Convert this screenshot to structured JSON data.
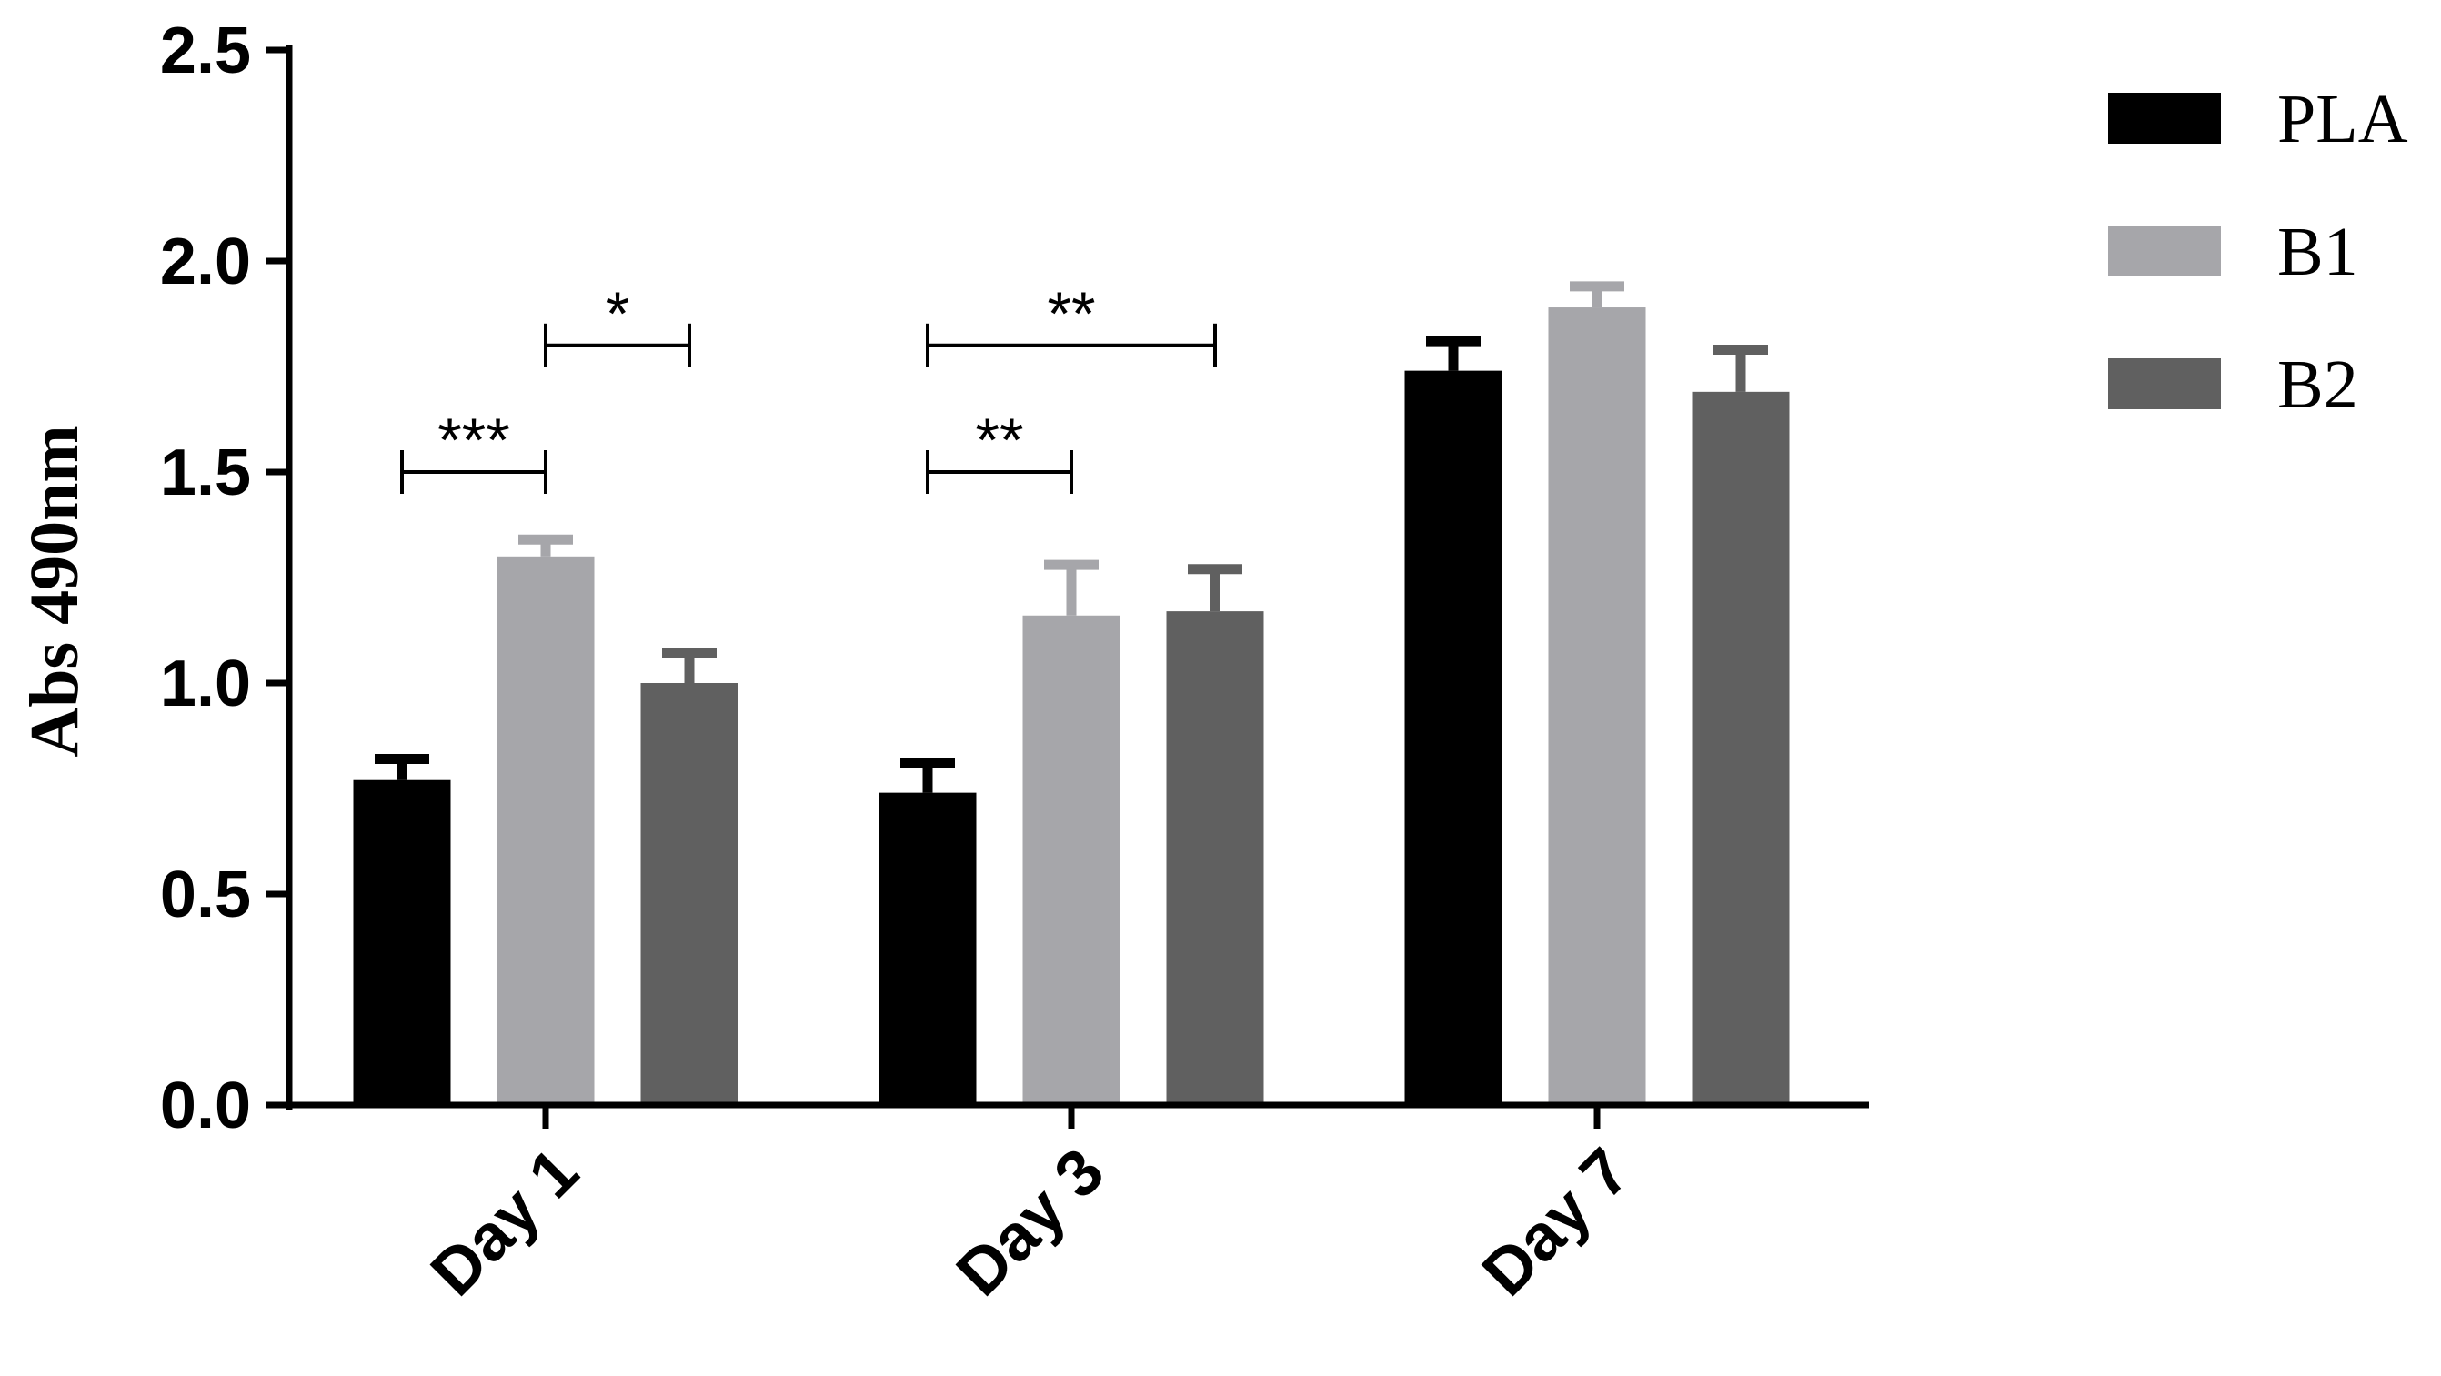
{
  "chart_data": {
    "type": "bar",
    "ylabel": "Abs 490nm",
    "ylim": [
      0,
      2.5
    ],
    "yticks": [
      "0.0",
      "0.5",
      "1.0",
      "1.5",
      "2.0",
      "2.5"
    ],
    "categories": [
      "Day 1",
      "Day 3",
      "Day 7"
    ],
    "series": [
      {
        "name": "PLA",
        "color": "#000000",
        "values": [
          0.77,
          0.74,
          1.74
        ],
        "errors": [
          0.05,
          0.07,
          0.07
        ]
      },
      {
        "name": "B1",
        "color": "#a6a6aa",
        "values": [
          1.3,
          1.16,
          1.89
        ],
        "errors": [
          0.04,
          0.12,
          0.05
        ]
      },
      {
        "name": "B2",
        "color": "#606060",
        "values": [
          1.0,
          1.17,
          1.69
        ],
        "errors": [
          0.07,
          0.1,
          0.1
        ]
      }
    ],
    "legend_position": "top-right",
    "significance": [
      {
        "category": "Day 1",
        "from_series": 0,
        "to_series": 1,
        "label": "***",
        "y": 1.5
      },
      {
        "category": "Day 1",
        "from_series": 1,
        "to_series": 2,
        "label": "*",
        "y": 1.8
      },
      {
        "category": "Day 3",
        "from_series": 0,
        "to_series": 1,
        "label": "**",
        "y": 1.5
      },
      {
        "category": "Day 3",
        "from_series": 0,
        "to_series": 2,
        "label": "**",
        "y": 1.8
      }
    ]
  }
}
